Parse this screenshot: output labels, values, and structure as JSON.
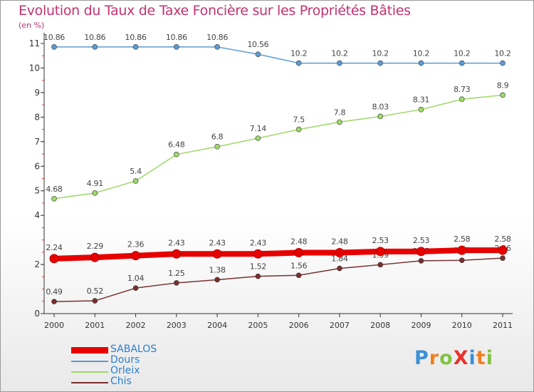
{
  "title": "Evolution du Taux de Taxe Foncière sur les Propriétés Bâties",
  "unit_label": "(en %)",
  "logo": {
    "text": "ProXiti",
    "letter_colors": [
      "#3d8fd6",
      "#f07f1e",
      "#82c341",
      "#e9322c",
      "#3d8fd6",
      "#f07f1e",
      "#82c341"
    ]
  },
  "chart_data": {
    "type": "line",
    "title": "Evolution du Taux de Taxe Foncière sur les Propriétés Bâties",
    "ylabel": "(en %)",
    "xlabel": "",
    "x": [
      "2000",
      "2001",
      "2002",
      "2003",
      "2004",
      "2005",
      "2006",
      "2007",
      "2008",
      "2009",
      "2010",
      "2011"
    ],
    "ylim": [
      0,
      11
    ],
    "yticks": [
      0,
      2,
      4,
      5,
      6,
      7,
      8,
      9,
      10,
      11
    ],
    "grid": false,
    "legend_position": "bottom-left",
    "series": [
      {
        "name": "SABALOS",
        "color": "#e60000",
        "values": [
          2.24,
          2.29,
          2.36,
          2.43,
          2.43,
          2.43,
          2.48,
          2.48,
          2.53,
          2.53,
          2.58,
          2.58
        ],
        "labels": [
          "2.24",
          "2.29",
          "2.36",
          "2.43",
          "2.43",
          "2.43",
          "2.48",
          "2.48",
          "2.53",
          "2.53",
          "2.58",
          "2.58"
        ]
      },
      {
        "name": "Dours",
        "color": "#5b9bd5",
        "values": [
          10.86,
          10.86,
          10.86,
          10.86,
          10.86,
          10.56,
          10.2,
          10.2,
          10.2,
          10.2,
          10.2,
          10.2
        ],
        "labels": [
          "10.86",
          "10.86",
          "10.86",
          "10.86",
          "10.86",
          "10.56",
          "10.2",
          "10.2",
          "10.2",
          "10.2",
          "10.2",
          "10.2"
        ]
      },
      {
        "name": "Orleix",
        "color": "#9fd86a",
        "values": [
          4.68,
          4.91,
          5.4,
          6.48,
          6.8,
          7.14,
          7.5,
          7.8,
          8.03,
          8.31,
          8.73,
          8.9
        ],
        "labels": [
          "4.68",
          "4.91",
          "5.4",
          "6.48",
          "6.8",
          "7.14",
          "7.5",
          "7.8",
          "8.03",
          "8.31",
          "8.73",
          "8.9"
        ]
      },
      {
        "name": "Chis",
        "color": "#7a2f2f",
        "values": [
          0.49,
          0.52,
          1.04,
          1.25,
          1.38,
          1.52,
          1.56,
          1.84,
          1.99,
          2.15,
          2.17,
          2.26
        ],
        "labels": [
          "0.49",
          "0.52",
          "1.04",
          "1.25",
          "1.38",
          "1.52",
          "1.56",
          "1.84",
          "1.99",
          "2.15",
          "2.17",
          "2.26"
        ]
      }
    ]
  }
}
